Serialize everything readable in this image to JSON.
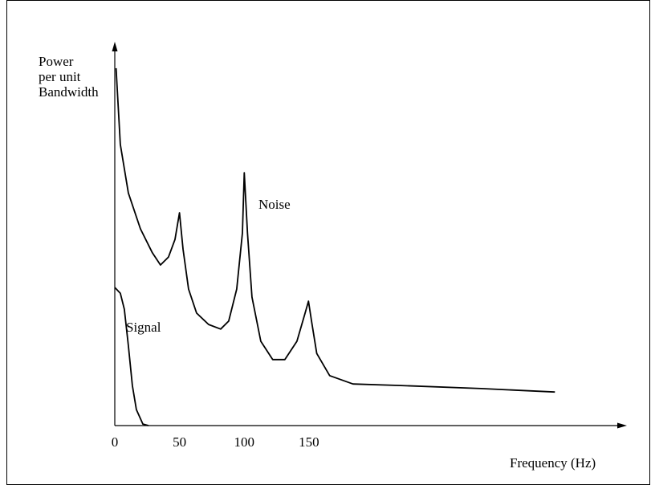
{
  "chart_data": {
    "type": "line",
    "ylabel": [
      "Power",
      "per unit",
      "Bandwidth"
    ],
    "xlabel": "Frequency (Hz)",
    "xlim": [
      0,
      395
    ],
    "ylim": [
      0,
      100
    ],
    "xticks": [
      0,
      50,
      100,
      150
    ],
    "grid": false,
    "series": [
      {
        "name": "Noise",
        "color": "#000000",
        "x": [
          1,
          4.3,
          10.5,
          19.8,
          29,
          35.3,
          41.5,
          46.5,
          50,
          52.7,
          57,
          63.2,
          72.5,
          81.8,
          88,
          94.2,
          98.6,
          100,
          102.5,
          106,
          112.8,
          122,
          131.4,
          140.7,
          147,
          149.6,
          152,
          156,
          166,
          184,
          221,
          283,
          340
        ],
        "values": [
          93.7,
          73.7,
          61,
          51.6,
          45.3,
          42.1,
          44.2,
          48.8,
          55.8,
          46.3,
          35.8,
          29.5,
          26.5,
          25.3,
          27.4,
          35.8,
          50.5,
          66.3,
          50.5,
          33.7,
          22.1,
          17.3,
          17.3,
          22.1,
          29.5,
          32.6,
          27.4,
          18.9,
          13.1,
          10.9,
          10.5,
          9.7,
          8.8
        ]
      },
      {
        "name": "Signal",
        "color": "#000000",
        "x": [
          0,
          4.3,
          7.4,
          10.5,
          13.6,
          16.7,
          21.7,
          26
        ],
        "values": [
          36.2,
          34.7,
          30.5,
          21,
          10.5,
          4.2,
          0.4,
          0
        ]
      }
    ]
  }
}
